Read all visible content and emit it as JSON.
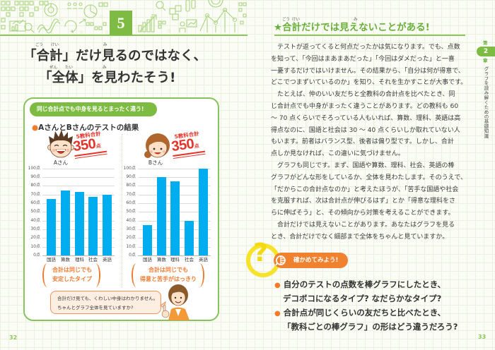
{
  "left_page": {
    "section_number": "5",
    "title": {
      "line1": "「合計」だけ見るのではなく、",
      "line2": "「全体」を見わたそう!",
      "ruby": [
        "ごう",
        "けい",
        "み",
        "ぜん",
        "たい",
        "み"
      ]
    },
    "example_box": {
      "banner": "同じ合計点でも中身を見るとまったく違う!",
      "heading_bullet": "●",
      "heading": "AさんとBさんのテストの結果",
      "students": [
        {
          "name": "Aさん",
          "total_label": "5教科合計",
          "total_value": "350",
          "total_unit": "点",
          "caption_line1": "合計は同じでも",
          "caption_line2": "安定したタイプ"
        },
        {
          "name": "Bさん",
          "total_label": "5教科合計",
          "total_value": "350",
          "total_unit": "点",
          "caption_line1": "合計は同じでも",
          "caption_line2": "得意と苦手がはっきり"
        }
      ],
      "teacher_speech": {
        "line1": "合計だけ見ても、くわしい中身はわかりません。",
        "line2": "ちゃんとグラフ全体を見ていますか?"
      }
    },
    "page_number": "32"
  },
  "right_page": {
    "heading": "★合計だけでは見えないことがある!",
    "heading_ruby": [
      "ごう",
      "けい",
      "み"
    ],
    "paragraphs": [
      {
        "lines": [
          "テストが返ってくると何点だったかは気になります。でも、点数",
          "を知って、「今回はまあまあだった」「今回はダメだった」と一喜",
          "一憂するだけではいけません。その結果から、「自分は何が得意で、",
          "どこでつまずいているのか」を知り、それを生かすことが大事です。"
        ]
      },
      {
        "lines": [
          "たとえば、仲のいい友だちと全教科の合計点を比べたとき、同",
          "じ合計点でも中身がまったく違うことがあります。どの教科も 60",
          "〜 70 点くらいでそろっている人もいれば、算数、理科、英語は高",
          "得点なのに、国語と社会は 30 〜 40 点くらいしか取れていない人",
          "もいます。前者はバランス型、後者は偏り型です。しかし、合計",
          "点しか見なければ、この違いに気づけません。"
        ]
      },
      {
        "lines": [
          "グラフも同じです。まず、国語や算数、理科、社会、英語の棒",
          "グラフがどんな形をしているか、全体を見わたします。そのうえで、",
          "「だからこの合計点なのか」と考えたほうが、「苦手な国語や社会",
          "を克服すれば、次は合計点が伸びるはず」とか「得意な理科をさ",
          "らに伸ばそう」と、その傾向から対策を考えることができます。"
        ]
      },
      {
        "lines": [
          "合計だけでは見えないことがあります。あなたはグラフを見る",
          "とき、合計だけでなく細部まで全体をちゃんと見ていますか。"
        ]
      }
    ],
    "check": {
      "icon_mark": "?",
      "label": "確かめてみよう!",
      "bullet": "●",
      "items": [
        {
          "line1": "自分のテストの点数を棒グラフにしたとき、",
          "line2": "デコボコになるタイプ? なだらかなタイプ?"
        },
        {
          "line1": "合計点が同じくらいの友だちと比べたとき、",
          "line2": "「教科ごとの棒グラフ」の形はどう違うだろう?"
        }
      ]
    },
    "side_tab": {
      "prefix": "第",
      "number": "2",
      "suffix": "章",
      "title": "グラフを読み解くための基礎知識"
    },
    "page_number": "33"
  },
  "colors": {
    "green": "#7dbb42",
    "heading_green": "#6ab03c",
    "bar_blue": "#00aeef",
    "orange": "#f07c2c",
    "red": "#e5342a",
    "yellow": "#f7e32b"
  },
  "chart_data": [
    {
      "type": "bar",
      "title": "Aさん",
      "categories": [
        "国語",
        "算数",
        "理科",
        "社会",
        "英語"
      ],
      "values": [
        65,
        75,
        73,
        67,
        70
      ],
      "yticks": [
        "100点",
        "90点",
        "80点",
        "70点",
        "60点",
        "50点",
        "40点",
        "30点",
        "20点",
        "10点",
        "0点"
      ],
      "xlabel": "",
      "ylabel": "点",
      "ylim": [
        0,
        100
      ],
      "grid": true,
      "annotation": "5教科合計 350点"
    },
    {
      "type": "bar",
      "title": "Bさん",
      "categories": [
        "国語",
        "算数",
        "理科",
        "社会",
        "英語"
      ],
      "values": [
        35,
        90,
        85,
        40,
        100
      ],
      "yticks": [
        "100点",
        "90点",
        "80点",
        "70点",
        "60点",
        "50点",
        "40点",
        "30点",
        "20点",
        "10点",
        "0点"
      ],
      "xlabel": "",
      "ylabel": "点",
      "ylim": [
        0,
        100
      ],
      "grid": true,
      "annotation": "5教科合計 350点"
    }
  ]
}
